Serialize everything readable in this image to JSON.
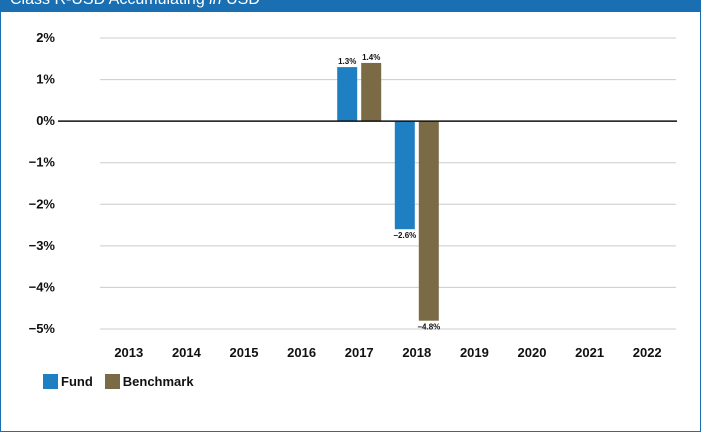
{
  "header": {
    "title_prefix": "Class R-USD Accumulating",
    "title_in": "in",
    "title_currency": "USD"
  },
  "colors": {
    "header": "#1a6fb3",
    "fund": "#1f7fc3",
    "benchmark": "#7a6a45",
    "grid": "#cccccc",
    "zero_line": "#111111"
  },
  "chart_data": {
    "type": "bar",
    "title": "",
    "xlabel": "",
    "ylabel": "",
    "categories": [
      "2013",
      "2014",
      "2015",
      "2016",
      "2017",
      "2018",
      "2019",
      "2020",
      "2021",
      "2022"
    ],
    "series": [
      {
        "name": "Fund",
        "values": [
          null,
          null,
          null,
          null,
          1.3,
          -2.6,
          null,
          null,
          null,
          null
        ],
        "labels": [
          null,
          null,
          null,
          null,
          "1.3%",
          "−2.6%",
          null,
          null,
          null,
          null
        ]
      },
      {
        "name": "Benchmark",
        "values": [
          null,
          null,
          null,
          null,
          1.4,
          -4.8,
          null,
          null,
          null,
          null
        ],
        "labels": [
          null,
          null,
          null,
          null,
          "1.4%",
          "−4.8%",
          null,
          null,
          null,
          null
        ]
      }
    ],
    "ylim": [
      -5,
      2
    ],
    "yticks": [
      2,
      1,
      0,
      -1,
      -2,
      -3,
      -4,
      -5
    ],
    "ytick_labels": [
      "2%",
      "1%",
      "0%",
      "−1%",
      "−2%",
      "−3%",
      "−4%",
      "−5%"
    ],
    "grid": true,
    "legend": "bottom-left"
  }
}
